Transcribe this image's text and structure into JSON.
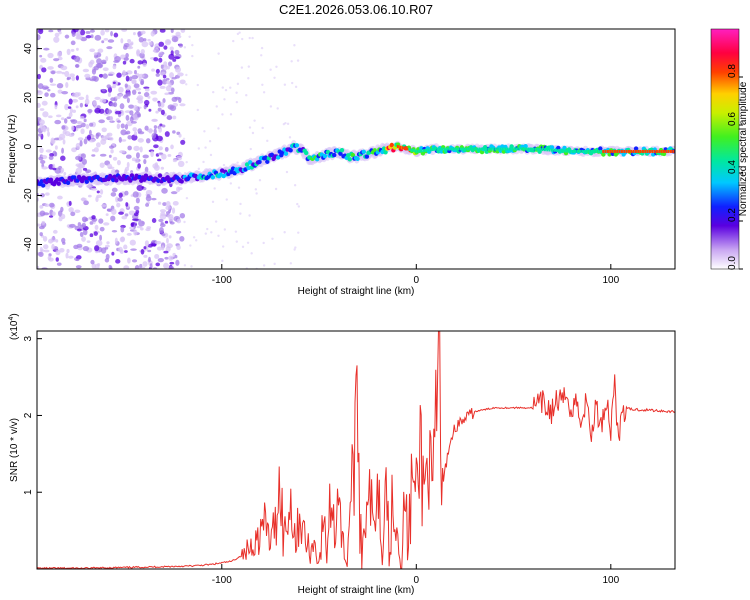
{
  "title": "C2E1.2026.053.06.10.R07",
  "chart_data": [
    {
      "type": "heatmap",
      "xlabel": "Height of straight line (km)",
      "ylabel": "Frequency (Hz)",
      "xlim": [
        -195,
        133
      ],
      "ylim": [
        -50,
        48
      ],
      "xticks": [
        -100,
        0,
        100
      ],
      "yticks": [
        -40,
        -20,
        0,
        20,
        40
      ],
      "colorbar": {
        "label": "Normalized spectral amplitude",
        "range": [
          0,
          1
        ],
        "ticks": [
          "0.0",
          "0.2",
          "0.4",
          "0.6",
          "0.8"
        ]
      },
      "ridge": {
        "description_points_x": [
          -195,
          -180,
          -165,
          -150,
          -135,
          -120,
          -110,
          -100,
          -90,
          -80,
          -70,
          -63,
          -58,
          -55,
          -50,
          -45,
          -40,
          -35,
          -30,
          -25,
          -20,
          -15,
          -10,
          -5,
          0,
          10,
          20,
          40,
          60,
          80,
          100,
          133
        ],
        "description_points_y": [
          -15,
          -14,
          -13,
          -13,
          -13,
          -13,
          -12,
          -11,
          -9,
          -6,
          -3,
          0,
          -2,
          -5,
          -4,
          -3,
          -2,
          -4,
          -4,
          -3,
          -2,
          -1,
          0,
          -1,
          -2,
          -1,
          -1,
          -1,
          -1,
          -2,
          -2,
          -2
        ]
      }
    },
    {
      "type": "line",
      "xlabel": "Height of straight line (km)",
      "ylabel": "SNR (10 * v/v)",
      "yscale_label": "(x10",
      "yscale_exp": "4",
      "yscale_close": ")",
      "xlim": [
        -195,
        133
      ],
      "ylim": [
        0,
        3.1
      ],
      "xticks": [
        -100,
        0,
        100
      ],
      "yticks": [
        1,
        2,
        3
      ],
      "series": [
        {
          "color": "#e8302a",
          "x": [
            -195,
            -170,
            -150,
            -130,
            -115,
            -105,
            -95,
            -88,
            -82,
            -78,
            -74,
            -72,
            -70,
            -68,
            -66,
            -64,
            -62,
            -60,
            -58,
            -55,
            -52,
            -50,
            -48,
            -46,
            -44,
            -42,
            -40,
            -38,
            -36,
            -34,
            -32,
            -30,
            -28,
            -25,
            -22,
            -20,
            -18,
            -16,
            -14,
            -12,
            -10,
            -8,
            -6,
            -4,
            -2,
            0,
            2,
            4,
            6,
            8,
            10,
            11,
            12,
            13,
            14,
            16,
            18,
            20,
            25,
            30,
            40,
            50,
            60,
            65,
            70,
            72,
            75,
            78,
            80,
            82,
            84,
            86,
            88,
            90,
            92,
            95,
            98,
            100,
            102,
            104,
            106,
            110,
            120,
            133
          ],
          "y": [
            0.01,
            0.01,
            0.02,
            0.03,
            0.04,
            0.06,
            0.1,
            0.2,
            0.4,
            0.6,
            0.3,
            0.8,
            1.15,
            0.4,
            0.7,
            0.9,
            0.3,
            0.7,
            0.5,
            0.2,
            0.35,
            0.05,
            0.6,
            0.3,
            0.9,
            0.5,
            1.2,
            0.4,
            0.1,
            0.8,
            1.5,
            1.9,
            0.1,
            1.2,
            0.4,
            1.45,
            0.3,
            1.5,
            0.2,
            1.0,
            0.6,
            0.05,
            0.9,
            0.3,
            1.3,
            0.7,
            1.7,
            0.9,
            1.6,
            0.8,
            1.7,
            2.0,
            3.05,
            0.9,
            1.1,
            1.5,
            1.7,
            1.85,
            1.95,
            2.05,
            2.1,
            2.1,
            2.1,
            2.15,
            2.05,
            2.2,
            2.15,
            2.3,
            2.0,
            2.25,
            1.9,
            2.1,
            2.15,
            1.7,
            2.1,
            1.9,
            2.2,
            1.8,
            2.5,
            1.6,
            2.1,
            2.08,
            2.07,
            2.05
          ]
        }
      ]
    }
  ]
}
